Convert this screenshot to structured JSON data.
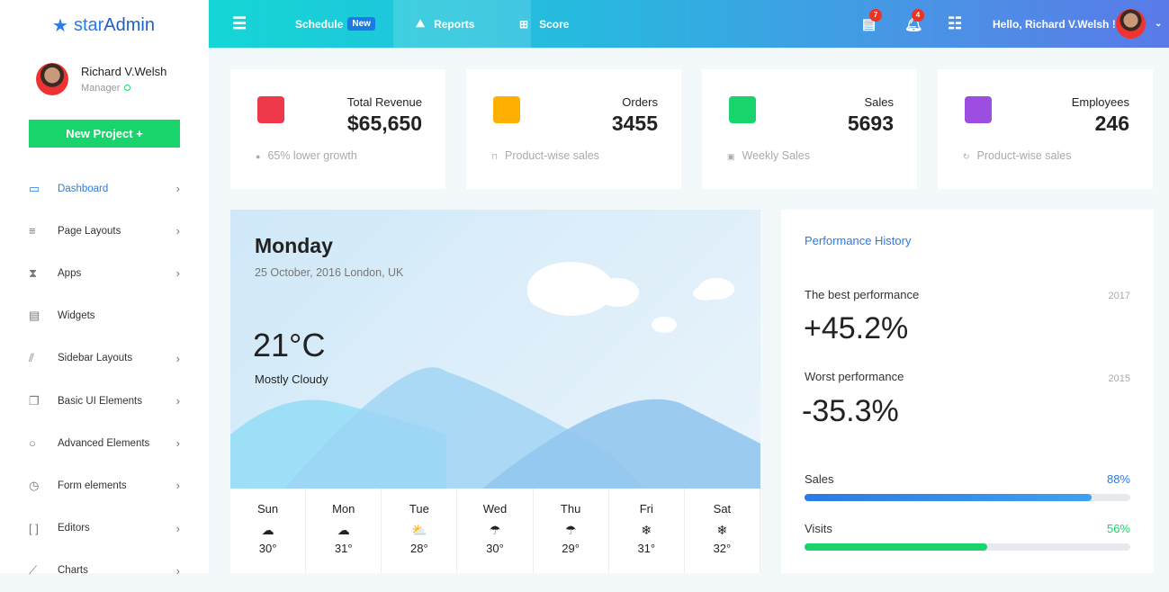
{
  "brand": {
    "name_a": "star",
    "name_b": "Admin"
  },
  "profile": {
    "name": "Richard V.Welsh",
    "role": "Manager"
  },
  "sidebar": {
    "new_project": "New Project +",
    "items": [
      {
        "label": "Dashboard",
        "icon": "▭",
        "chev": true
      },
      {
        "label": "Page Layouts",
        "icon": "≡",
        "chev": true
      },
      {
        "label": "Apps",
        "icon": "⧗",
        "chev": true
      },
      {
        "label": "Widgets",
        "icon": "▤",
        "chev": false
      },
      {
        "label": "Sidebar Layouts",
        "icon": "⫽",
        "chev": true
      },
      {
        "label": "Basic UI Elements",
        "icon": "❐",
        "chev": true
      },
      {
        "label": "Advanced Elements",
        "icon": "○",
        "chev": true
      },
      {
        "label": "Form elements",
        "icon": "◷",
        "chev": true
      },
      {
        "label": "Editors",
        "icon": "[ ]",
        "chev": true
      },
      {
        "label": "Charts",
        "icon": "⟋",
        "chev": true
      }
    ]
  },
  "topbar": {
    "schedule": "Schedule",
    "new_badge": "New",
    "reports": "Reports",
    "score": "Score",
    "messages_count": "7",
    "notifications_count": "4",
    "greeting": "Hello, Richard V.Welsh !"
  },
  "stats": [
    {
      "title": "Total Revenue",
      "value": "$65,650",
      "footer": "65% lower growth",
      "color": "#f0384b",
      "footer_icon": "●"
    },
    {
      "title": "Orders",
      "value": "3455",
      "footer": "Product-wise sales",
      "color": "#ffaf00",
      "footer_icon": "⊓"
    },
    {
      "title": "Sales",
      "value": "5693",
      "footer": "Weekly Sales",
      "color": "#19d36c",
      "footer_icon": "▣"
    },
    {
      "title": "Employees",
      "value": "246",
      "footer": "Product-wise sales",
      "color": "#9c4ee0",
      "footer_icon": "↻"
    }
  ],
  "weather": {
    "day": "Monday",
    "date": "25 October, 2016 London, UK",
    "temp": "21°C",
    "condition": "Mostly Cloudy",
    "forecast": [
      {
        "d": "Sun",
        "i": "☁",
        "t": "30°"
      },
      {
        "d": "Mon",
        "i": "☁",
        "t": "31°"
      },
      {
        "d": "Tue",
        "i": "⛅",
        "t": "28°"
      },
      {
        "d": "Wed",
        "i": "☂",
        "t": "30°"
      },
      {
        "d": "Thu",
        "i": "☂",
        "t": "29°"
      },
      {
        "d": "Fri",
        "i": "❄",
        "t": "31°"
      },
      {
        "d": "Sat",
        "i": "❄",
        "t": "32°"
      }
    ]
  },
  "performance": {
    "title": "Performance History",
    "best_label": "The best performance",
    "best_year": "2017",
    "best_value": "+45.2%",
    "worst_label": "Worst performance",
    "worst_year": "2015",
    "worst_value": "-35.3%",
    "sales_label": "Sales",
    "sales_pct": "88%",
    "sales_value": 88,
    "visits_label": "Visits",
    "visits_pct": "56%",
    "visits_value": 56
  }
}
